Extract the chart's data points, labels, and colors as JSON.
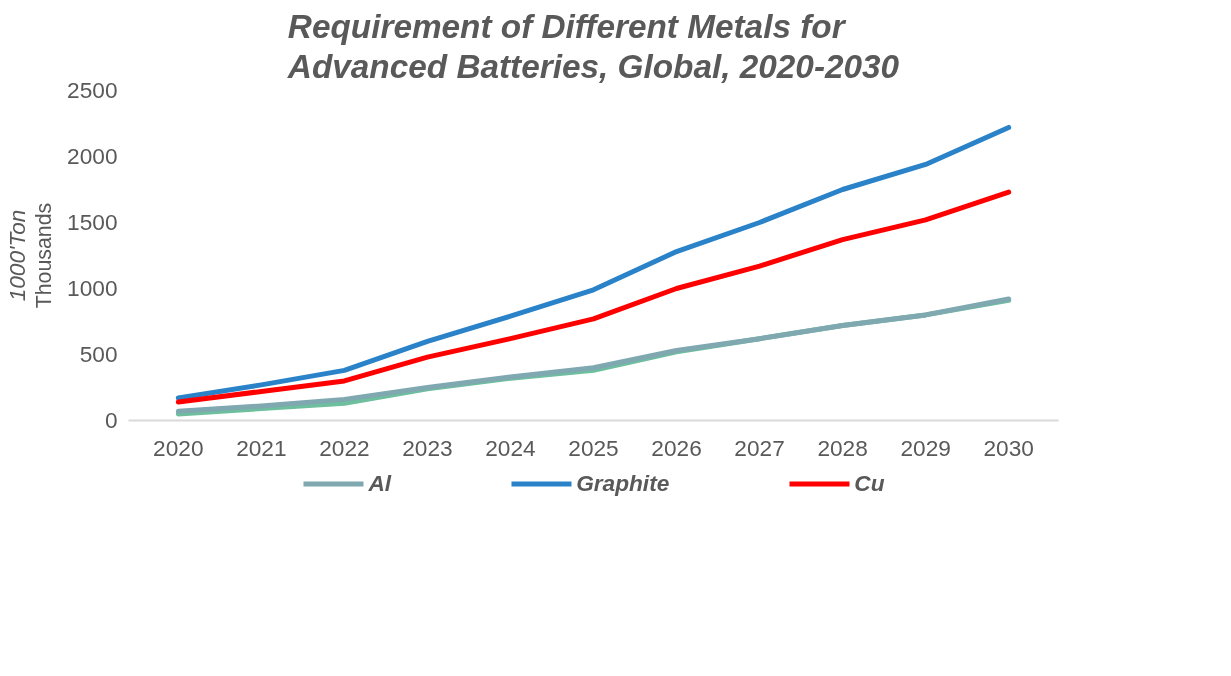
{
  "chart_data": {
    "type": "line",
    "title": "Requirement of Different Metals for Advanced Batteries, Global, 2020-2030",
    "ylabel": "1000'Ton",
    "annotations": [
      "Thousands"
    ],
    "categories": [
      "2020",
      "2021",
      "2022",
      "2023",
      "2024",
      "2025",
      "2026",
      "2027",
      "2028",
      "2029",
      "2030"
    ],
    "series": [
      {
        "color": "#6dbf9e",
        "values": [
          50,
          90,
          130,
          240,
          320,
          380,
          520,
          620,
          720,
          800,
          910
        ]
      },
      {
        "name": "Al",
        "color": "#7fa8b0",
        "values": [
          70,
          110,
          160,
          250,
          330,
          400,
          530,
          620,
          720,
          800,
          920
        ]
      },
      {
        "name": "Graphite",
        "color": "#2a82c8",
        "values": [
          170,
          270,
          380,
          600,
          790,
          990,
          1280,
          1500,
          1750,
          1940,
          2220
        ]
      },
      {
        "name": "Cu",
        "color": "#ff0000",
        "values": [
          140,
          220,
          300,
          480,
          620,
          770,
          1000,
          1170,
          1370,
          1520,
          1730
        ]
      }
    ],
    "ylim": [
      0,
      2500
    ],
    "yticks": [
      0,
      500,
      1000,
      1500,
      2000,
      2500
    ],
    "grid": false,
    "legend": "bottom",
    "line_style": "solid",
    "marker": "none"
  }
}
